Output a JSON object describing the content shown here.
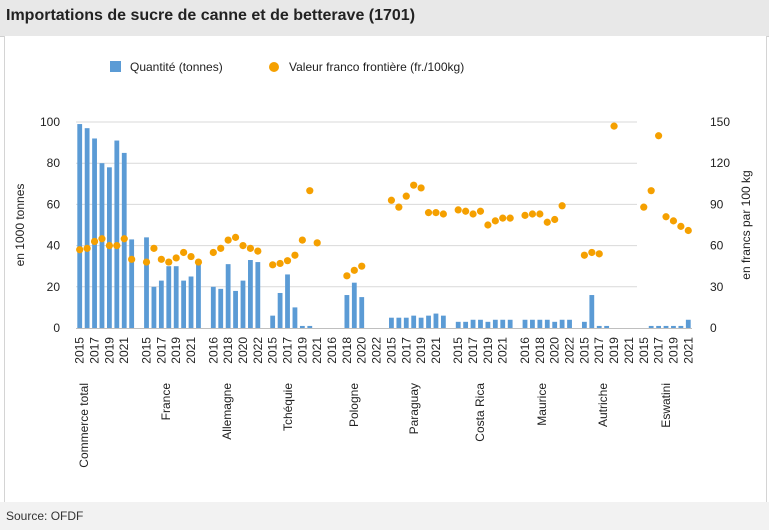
{
  "title": "Importations de sucre de canne et de betterave (1701)",
  "source": "Source: OFDF",
  "colors": {
    "bar": "#5b9bd5",
    "dot": "#f5a000",
    "grid": "#d9d9d9",
    "text": "#222222"
  },
  "chart_data": {
    "type": "bar+scatter",
    "title": "Importations de sucre de canne et de betterave (1701)",
    "ylabel_left": "en 1000 tonnes",
    "ylabel_right": "en francs par 100 kg",
    "ylim_left": [
      0,
      100
    ],
    "ylim_right": [
      0,
      150
    ],
    "yticks_left": [
      "0",
      "20",
      "40",
      "60",
      "80",
      "100"
    ],
    "yticks_right": [
      "0",
      "30",
      "60",
      "90",
      "120",
      "150"
    ],
    "legend": {
      "bar": "Quantité (tonnes)",
      "dot": "Valeur franco frontière (fr./100kg)"
    },
    "groups": [
      {
        "name": "Commerce total",
        "years": [
          2015,
          2016,
          2017,
          2018,
          2019,
          2020,
          2021,
          2022
        ],
        "quantity": [
          99,
          97,
          92,
          80,
          78,
          91,
          85,
          43
        ],
        "value": [
          57,
          58,
          63,
          65,
          60,
          60,
          65,
          50
        ]
      },
      {
        "name": "France",
        "years": [
          2015,
          2016,
          2017,
          2018,
          2019,
          2020,
          2021,
          2022
        ],
        "quantity": [
          44,
          20,
          23,
          30,
          30,
          23,
          25,
          31
        ],
        "value": [
          48,
          58,
          50,
          48,
          51,
          55,
          52,
          48
        ]
      },
      {
        "name": "Allemagne",
        "years": [
          2016,
          2017,
          2018,
          2019,
          2020,
          2021,
          2022
        ],
        "quantity": [
          20,
          19,
          31,
          18,
          23,
          33,
          32
        ],
        "value": [
          55,
          58,
          64,
          66,
          60,
          58,
          56
        ]
      },
      {
        "name": "Tchéquie",
        "years": [
          2015,
          2016,
          2017,
          2018,
          2019,
          2020,
          2021
        ],
        "quantity": [
          6,
          17,
          26,
          10,
          1,
          1,
          0
        ],
        "value": [
          46,
          47,
          49,
          53,
          64,
          100,
          62
        ]
      },
      {
        "name": "Pologne",
        "years": [
          2016,
          2017,
          2018,
          2019,
          2020,
          2021,
          2022
        ],
        "quantity": [
          0,
          0,
          16,
          22,
          15,
          0,
          0
        ],
        "value": [
          null,
          null,
          38,
          42,
          45,
          null,
          null
        ]
      },
      {
        "name": "Paraguay",
        "years": [
          2015,
          2016,
          2017,
          2018,
          2019,
          2020,
          2021,
          2022
        ],
        "quantity": [
          5,
          5,
          5,
          6,
          5,
          6,
          7,
          6
        ],
        "value": [
          93,
          88,
          96,
          104,
          102,
          84,
          84,
          83
        ]
      },
      {
        "name": "Costa Rica",
        "years": [
          2015,
          2016,
          2017,
          2018,
          2019,
          2020,
          2021,
          2022
        ],
        "quantity": [
          3,
          3,
          4,
          4,
          3,
          4,
          4,
          4
        ],
        "value": [
          86,
          85,
          83,
          85,
          75,
          78,
          80,
          80
        ]
      },
      {
        "name": "Maurice",
        "years": [
          2016,
          2017,
          2018,
          2019,
          2020,
          2021,
          2022
        ],
        "quantity": [
          4,
          4,
          4,
          4,
          3,
          4,
          4
        ],
        "value": [
          82,
          83,
          83,
          77,
          79,
          89,
          null
        ]
      },
      {
        "name": "Autriche",
        "years": [
          2015,
          2016,
          2017,
          2018,
          2019,
          2020,
          2021
        ],
        "quantity": [
          3,
          16,
          1,
          1,
          0,
          0,
          0
        ],
        "value": [
          53,
          55,
          54,
          null,
          147,
          null,
          null
        ]
      },
      {
        "name": "Eswatini",
        "years": [
          2015,
          2016,
          2017,
          2018,
          2019,
          2020,
          2021
        ],
        "quantity": [
          0,
          1,
          1,
          1,
          1,
          1,
          4
        ],
        "value": [
          88,
          100,
          140,
          81,
          78,
          74,
          71
        ]
      }
    ]
  }
}
